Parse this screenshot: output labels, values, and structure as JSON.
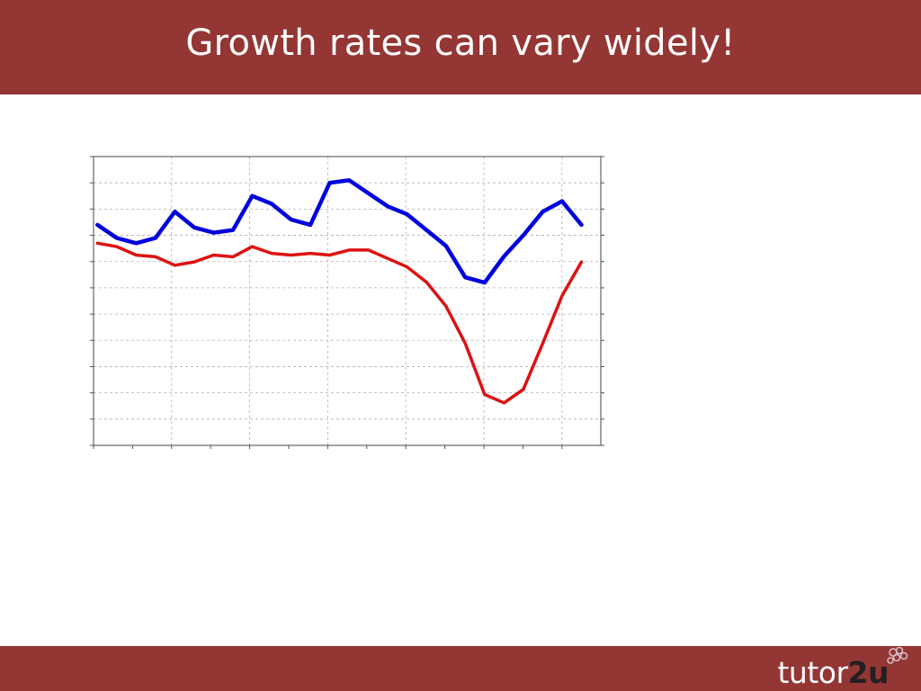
{
  "slide": {
    "title": "Growth rates can vary widely!"
  },
  "logo": {
    "text_main": "tutor",
    "text_accent": "2u",
    "icon": "flower-logo-icon"
  },
  "colors": {
    "band": "#943634",
    "series_blue": "#0000dd",
    "series_red": "#dd1111"
  },
  "chart_data": {
    "type": "line",
    "title": "",
    "xlabel": "",
    "ylabel": "",
    "grid": true,
    "axes": "dual",
    "x": [
      1,
      2,
      3,
      4,
      5,
      6,
      7,
      8,
      9,
      10,
      11,
      12,
      13,
      14,
      15,
      16,
      17,
      18,
      19,
      20,
      21,
      22,
      23,
      24,
      25,
      26
    ],
    "xlim": [
      0.8,
      27.0
    ],
    "series": [
      {
        "axis": "left",
        "color": "#0000dd",
        "values": [
          8.4,
          7.9,
          7.7,
          7.9,
          8.9,
          8.3,
          8.1,
          8.2,
          9.5,
          9.2,
          8.6,
          8.4,
          10.0,
          10.1,
          9.6,
          9.1,
          8.8,
          8.2,
          7.6,
          6.4,
          6.2,
          7.2,
          8.0,
          8.9,
          9.3,
          8.4
        ],
        "ylim": [
          0,
          11
        ]
      },
      {
        "axis": "right",
        "color": "#dd1111",
        "values": [
          4.9,
          4.7,
          4.2,
          4.1,
          3.6,
          3.8,
          4.2,
          4.1,
          4.7,
          4.3,
          4.2,
          4.3,
          4.2,
          4.5,
          4.5,
          4.0,
          3.5,
          2.6,
          1.2,
          -1.0,
          -4.0,
          -4.5,
          -3.7,
          -1.0,
          1.8,
          3.8
        ],
        "ylim": [
          -7,
          10
        ]
      }
    ]
  }
}
